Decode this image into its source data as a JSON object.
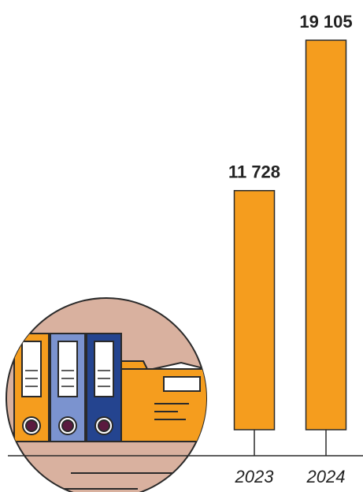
{
  "chart_data": {
    "type": "bar",
    "categories": [
      "2023",
      "2024"
    ],
    "values": [
      11728,
      19105
    ],
    "value_labels": [
      "11 728",
      "19 105"
    ],
    "color": "#f59d1e"
  }
}
